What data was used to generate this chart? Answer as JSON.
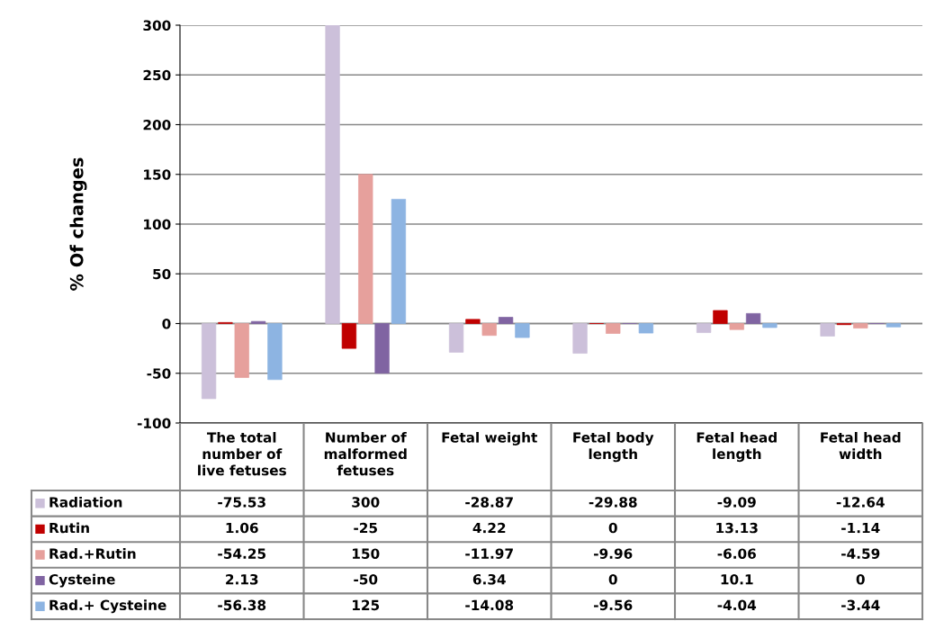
{
  "chart_data": {
    "type": "bar",
    "ylabel": "% Of changes",
    "categories": [
      "The total\nnumber of\nlive fetuses",
      "Number of\nmalformed\nfetuses",
      "Fetal weight",
      "Fetal body\nlength",
      "Fetal head\nlength",
      "Fetal head\nwidth"
    ],
    "series": [
      {
        "name": "Radiation",
        "color": "#ccc0da",
        "values": [
          -75.53,
          300,
          -28.87,
          -29.88,
          -9.09,
          -12.64
        ]
      },
      {
        "name": "Rutin",
        "color": "#c00000",
        "values": [
          1.06,
          -25,
          4.22,
          0,
          13.13,
          -1.14
        ]
      },
      {
        "name": "Rad.+Rutin",
        "color": "#e6a09c",
        "values": [
          -54.25,
          150,
          -11.97,
          -9.96,
          -6.06,
          -4.59
        ]
      },
      {
        "name": "Cysteine",
        "color": "#8064a2",
        "values": [
          2.13,
          -50,
          6.34,
          0,
          10.1,
          0
        ]
      },
      {
        "name": "Rad.+ Cysteine",
        "color": "#8db4e2",
        "values": [
          -56.38,
          125,
          -14.08,
          -9.56,
          -4.04,
          -3.44
        ]
      }
    ],
    "ylim": [
      -100,
      300
    ],
    "yticks": [
      -100,
      -50,
      0,
      50,
      100,
      150,
      200,
      250,
      300
    ],
    "grid": "y",
    "legend": "bottom left",
    "data_labels": true
  }
}
